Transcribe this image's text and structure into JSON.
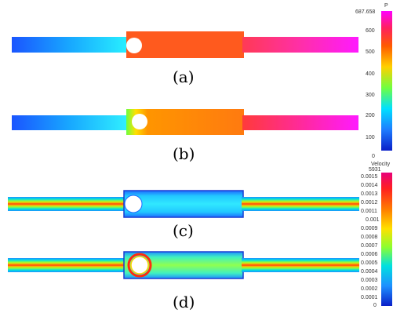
{
  "panels": [
    {
      "label": "(a)"
    },
    {
      "label": "(b)"
    },
    {
      "label": "(c)"
    },
    {
      "label": "(d)"
    }
  ],
  "pressure_legend": {
    "title": "P",
    "max_label": "687.658",
    "ticks": [
      "600",
      "500",
      "400",
      "300",
      "200",
      "100",
      "0"
    ],
    "colors": [
      "#ff00ff",
      "#ff3030",
      "#ff8a00",
      "#ffe600",
      "#7dff3c",
      "#00e6ff",
      "#2a7dff",
      "#0a1fc8"
    ]
  },
  "velocity_legend": {
    "title": "Velocity",
    "max_label": "5931",
    "ticks": [
      "0.0015",
      "0.0014",
      "0.0013",
      "0.0012",
      "0.0011",
      "0.001",
      "0.0009",
      "0.0008",
      "0.0007",
      "0.0006",
      "0.0005",
      "0.0004",
      "0.0003",
      "0.0002",
      "0.0001",
      "0"
    ],
    "colors": [
      "#e8007a",
      "#ff2020",
      "#ff8000",
      "#ffe000",
      "#8cff30",
      "#00e0e0",
      "#1e90ff",
      "#0a1fc8"
    ]
  }
}
